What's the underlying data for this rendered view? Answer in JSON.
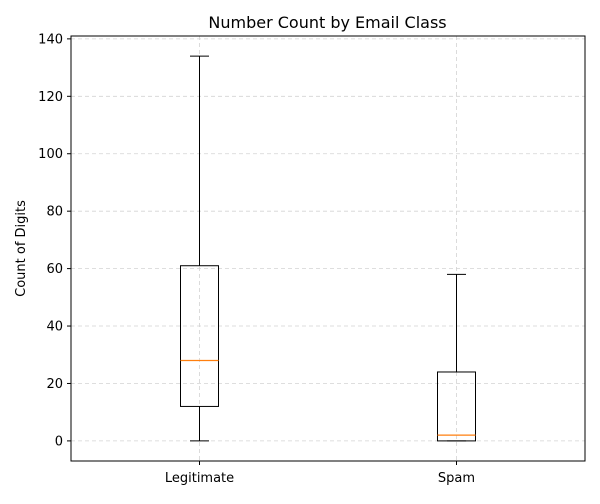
{
  "chart_data": {
    "type": "box",
    "title": "Number Count by Email Class",
    "xlabel": "",
    "ylabel": "Count of Digits",
    "ylim": [
      -7,
      141
    ],
    "yticks": [
      0,
      20,
      40,
      60,
      80,
      100,
      120,
      140
    ],
    "categories": [
      "Legitimate",
      "Spam"
    ],
    "boxes": [
      {
        "whisker_low": 0,
        "q1": 12,
        "median": 28,
        "q3": 61,
        "whisker_high": 134
      },
      {
        "whisker_low": 0,
        "q1": 0,
        "median": 2,
        "q3": 24,
        "whisker_high": 58
      }
    ],
    "grid": true,
    "colors": {
      "box": "#000000",
      "median": "#ff7f0e",
      "grid": "#d3d3d3"
    }
  }
}
